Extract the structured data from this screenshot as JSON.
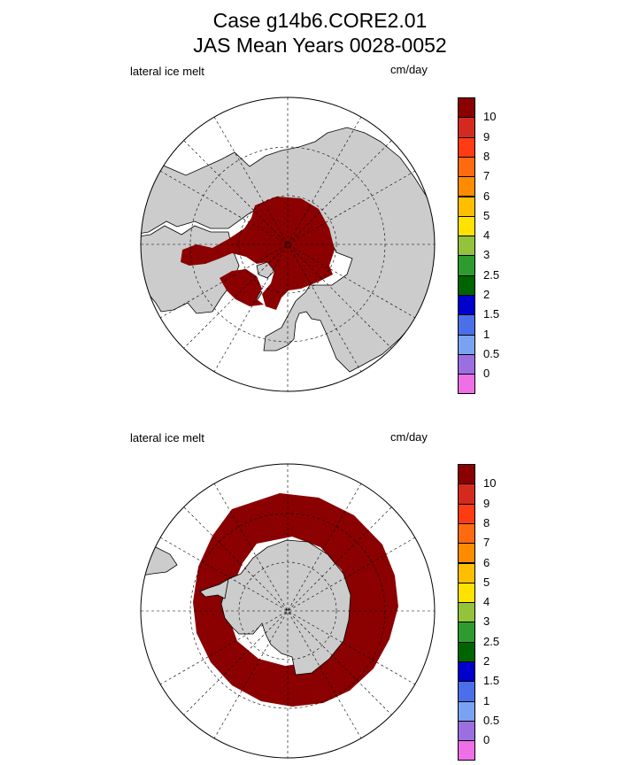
{
  "title_line1": "Case g14b6.CORE2.01",
  "title_line2": "JAS Mean    Years 0028-0052",
  "panels": [
    {
      "label": "lateral ice melt",
      "units": "cm/day",
      "hemisphere": "north"
    },
    {
      "label": "lateral ice melt",
      "units": "cm/day",
      "hemisphere": "south"
    }
  ],
  "colorbar": {
    "labels": [
      "10",
      "9",
      "8",
      "7",
      "6",
      "5",
      "4",
      "3",
      "2.5",
      "2",
      "1.5",
      "1",
      "0.5",
      "0"
    ],
    "colors": [
      "#8b0000",
      "#d42a1e",
      "#ff3b14",
      "#ff6a10",
      "#ff8c00",
      "#ffbf00",
      "#ffe200",
      "#94c23a",
      "#2e9b2e",
      "#006400",
      "#0000cd",
      "#4a6fe8",
      "#79a3f2",
      "#9b6fe0",
      "#ee6fe6"
    ]
  },
  "colors": {
    "melt": "#8b0000",
    "land": "#cccccc",
    "ocean": "#ffffff"
  }
}
